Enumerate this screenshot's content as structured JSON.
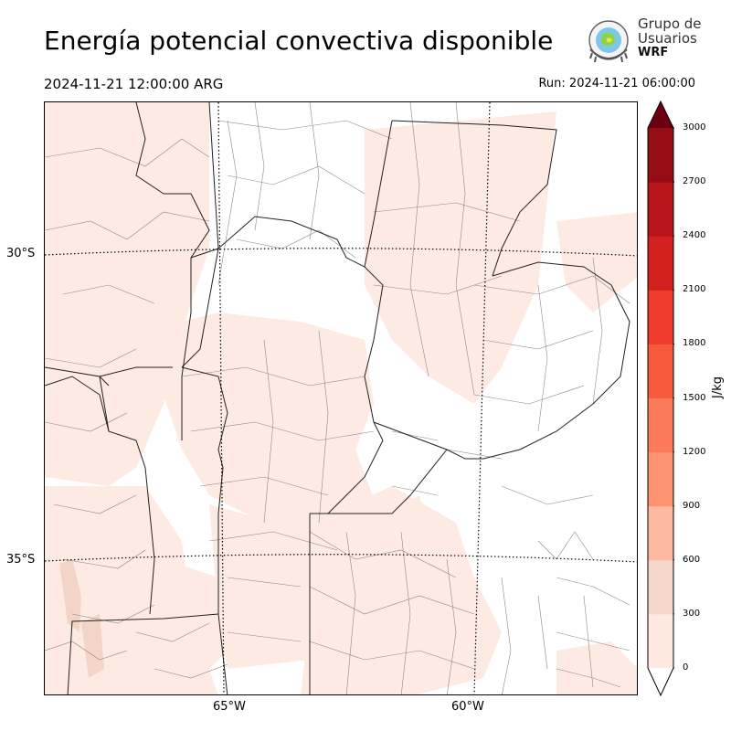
{
  "header": {
    "title": "Energía potencial convectiva disponible",
    "valid_time": "2024-11-21 12:00:00 ARG",
    "run_time": "Run: 2024-11-21 06:00:00"
  },
  "logo": {
    "line1": "Grupo de",
    "line2": "Usuarios",
    "line3": "WRF"
  },
  "map": {
    "lat_labels": [
      "30°S",
      "35°S"
    ],
    "lon_labels": [
      "65°W",
      "60°W"
    ]
  },
  "colorbar": {
    "unit": "J/kg",
    "ticks": [
      "0",
      "300",
      "600",
      "900",
      "1200",
      "1500",
      "1800",
      "2100",
      "2400",
      "2700",
      "3000"
    ],
    "colors": [
      "#fee8df",
      "#f6d7cc",
      "#fcbba1",
      "#fc9272",
      "#fb7a5a",
      "#f85a3e",
      "#ee3b2c",
      "#d3201f",
      "#b61419",
      "#960c15",
      "#6d0010"
    ]
  }
}
